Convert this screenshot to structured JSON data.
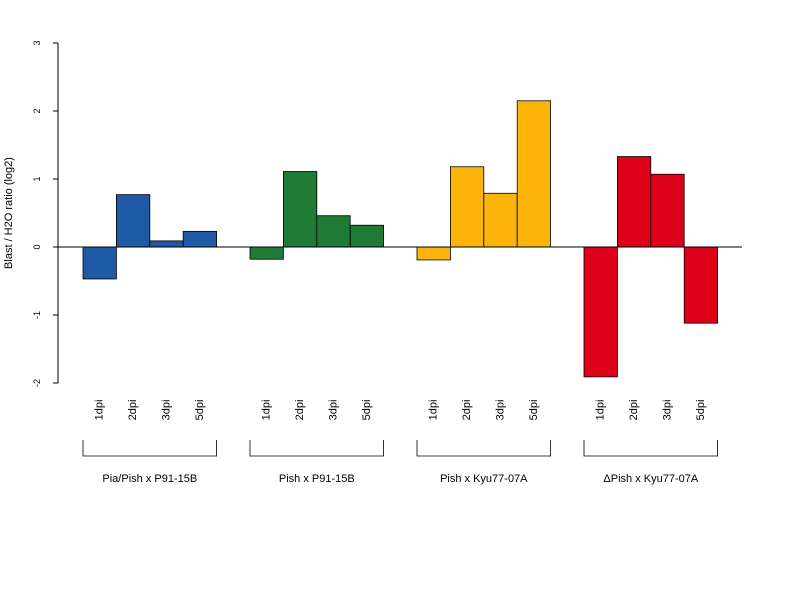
{
  "chart_data": {
    "type": "bar",
    "ylabel": "Blast / H2O ratio (log2)",
    "ylim": [
      -2,
      3
    ],
    "yticks": [
      -2,
      -1,
      0,
      1,
      2,
      3
    ],
    "grid": false,
    "categories": [
      "1dpi",
      "2dpi",
      "3dpi",
      "5dpi"
    ],
    "groups": [
      {
        "name": "Pia/Pish x P91-15B",
        "color": "#1F5AA6",
        "values": [
          -0.47,
          0.77,
          0.09,
          0.23
        ]
      },
      {
        "name": "Pish x P91-15B",
        "color": "#1F7A36",
        "values": [
          -0.18,
          1.11,
          0.46,
          0.32
        ]
      },
      {
        "name": "Pish x Kyu77-07A",
        "color": "#FDB40A",
        "values": [
          -0.19,
          1.18,
          0.79,
          2.15
        ]
      },
      {
        "name": "ΔPish x Kyu77-07A",
        "color": "#DC0019",
        "values": [
          -1.91,
          1.33,
          1.07,
          -1.12
        ]
      }
    ]
  }
}
